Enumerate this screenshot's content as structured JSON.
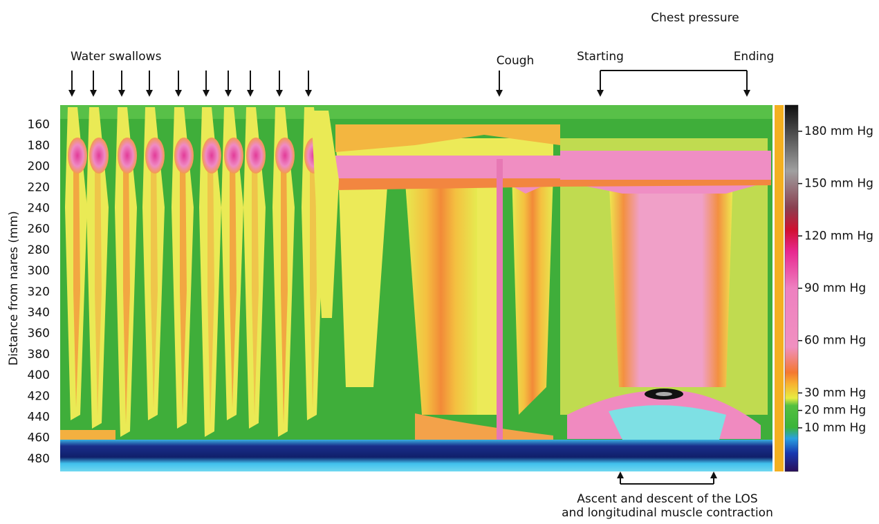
{
  "chart_data": {
    "type": "heatmap",
    "ylabel": "Distance from nares (mm)",
    "ylim": [
      141,
      492
    ],
    "y_inverted": true,
    "yticks": [
      160,
      180,
      200,
      220,
      240,
      260,
      280,
      300,
      320,
      340,
      360,
      380,
      400,
      420,
      440,
      460,
      480
    ],
    "colorbar": {
      "zlim": [
        -15,
        195
      ],
      "ticks": [
        {
          "value": 180,
          "label": "180 mm Hg"
        },
        {
          "value": 150,
          "label": "150 mm Hg"
        },
        {
          "value": 120,
          "label": "120 mm Hg"
        },
        {
          "value": 90,
          "label": "90 mm Hg"
        },
        {
          "value": 60,
          "label": "60 mm Hg"
        },
        {
          "value": 30,
          "label": "30 mm Hg"
        },
        {
          "value": 20,
          "label": "20 mm Hg"
        },
        {
          "value": 10,
          "label": "10 mm Hg"
        }
      ]
    },
    "annotations": [
      "Chest pressure",
      "Water swallows",
      "Cough",
      "Starting",
      "Ending",
      "Ascent and descent of the LOS",
      "and longitudinal muscle contraction"
    ]
  }
}
